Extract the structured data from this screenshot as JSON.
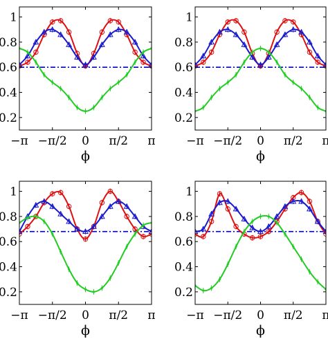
{
  "chart_data": [
    {
      "type": "line",
      "xlabel": "ϕ",
      "ylabel": "",
      "xlim": [
        -3.1416,
        3.1416
      ],
      "ylim": [
        0.1,
        1.08
      ],
      "xticks": [
        -3.1416,
        -1.5708,
        0,
        1.5708,
        3.1416
      ],
      "xtick_labels": [
        "−π",
        "−π/2",
        "0",
        "π/2",
        "π"
      ],
      "yticks": [
        0.2,
        0.4,
        0.6,
        0.8,
        1.0
      ],
      "ytick_labels": [
        "0.2",
        "0.4",
        "0.6",
        "0.8",
        "1"
      ],
      "reference_line": {
        "y": 0.6,
        "style": "dash-dot",
        "color": "#0000cc"
      },
      "series": [
        {
          "color": "#dd1111",
          "marker": "circle",
          "x": [
            -3.1416,
            -2.7489,
            -2.3562,
            -1.9635,
            -1.5708,
            -1.1781,
            -0.7854,
            -0.3927,
            0,
            0.3927,
            0.7854,
            1.1781,
            1.5708,
            1.9635,
            2.3562,
            2.7489,
            3.1416
          ],
          "y": [
            0.61,
            0.64,
            0.72,
            0.86,
            0.96,
            0.97,
            0.88,
            0.71,
            0.61,
            0.71,
            0.88,
            0.97,
            0.96,
            0.86,
            0.72,
            0.64,
            0.61
          ]
        },
        {
          "color": "#1a1acc",
          "marker": "triangle",
          "x": [
            -3.1416,
            -2.7489,
            -2.3562,
            -1.9635,
            -1.5708,
            -1.1781,
            -0.7854,
            -0.3927,
            0,
            0.3927,
            0.7854,
            1.1781,
            1.5708,
            1.9635,
            2.3562,
            2.7489,
            3.1416
          ],
          "y": [
            0.62,
            0.69,
            0.8,
            0.88,
            0.9,
            0.86,
            0.78,
            0.68,
            0.62,
            0.68,
            0.78,
            0.86,
            0.9,
            0.88,
            0.8,
            0.69,
            0.62
          ]
        },
        {
          "color": "#22cc22",
          "marker": "point",
          "x": [
            -3.1416,
            -2.7489,
            -2.3562,
            -1.9635,
            -1.5708,
            -1.1781,
            -0.7854,
            -0.3927,
            0,
            0.3927,
            0.7854,
            1.1781,
            1.5708,
            1.9635,
            2.3562,
            2.7489,
            3.1416
          ],
          "y": [
            0.75,
            0.72,
            0.64,
            0.54,
            0.48,
            0.43,
            0.36,
            0.28,
            0.25,
            0.28,
            0.36,
            0.43,
            0.48,
            0.54,
            0.64,
            0.72,
            0.75
          ]
        }
      ]
    },
    {
      "type": "line",
      "xlabel": "ϕ",
      "ylabel": "",
      "xlim": [
        -3.1416,
        3.1416
      ],
      "ylim": [
        0.1,
        1.08
      ],
      "xticks": [
        -3.1416,
        -1.5708,
        0,
        1.5708,
        3.1416
      ],
      "xtick_labels": [
        "−π",
        "−π/2",
        "0",
        "π/2",
        "π"
      ],
      "yticks": [
        0.2,
        0.4,
        0.6,
        0.8,
        1.0
      ],
      "ytick_labels": [
        "0.2",
        "0.4",
        "0.6",
        "0.8",
        "1"
      ],
      "reference_line": {
        "y": 0.6,
        "style": "dash-dot",
        "color": "#0000cc"
      },
      "series": [
        {
          "color": "#dd1111",
          "marker": "circle",
          "x": [
            -3.1416,
            -2.7489,
            -2.3562,
            -1.9635,
            -1.5708,
            -1.1781,
            -0.7854,
            -0.3927,
            0,
            0.3927,
            0.7854,
            1.1781,
            1.5708,
            1.9635,
            2.3562,
            2.7489,
            3.1416
          ],
          "y": [
            0.61,
            0.64,
            0.72,
            0.86,
            0.96,
            0.97,
            0.88,
            0.71,
            0.61,
            0.71,
            0.88,
            0.97,
            0.96,
            0.86,
            0.72,
            0.64,
            0.61
          ]
        },
        {
          "color": "#1a1acc",
          "marker": "triangle",
          "x": [
            -3.1416,
            -2.7489,
            -2.3562,
            -1.9635,
            -1.5708,
            -1.1781,
            -0.7854,
            -0.3927,
            0,
            0.3927,
            0.7854,
            1.1781,
            1.5708,
            1.9635,
            2.3562,
            2.7489,
            3.1416
          ],
          "y": [
            0.62,
            0.69,
            0.8,
            0.88,
            0.9,
            0.86,
            0.78,
            0.68,
            0.62,
            0.68,
            0.78,
            0.86,
            0.9,
            0.88,
            0.8,
            0.69,
            0.62
          ]
        },
        {
          "color": "#22cc22",
          "marker": "point",
          "x": [
            -3.1416,
            -2.7489,
            -2.3562,
            -1.9635,
            -1.5708,
            -1.1781,
            -0.7854,
            -0.3927,
            0,
            0.3927,
            0.7854,
            1.1781,
            1.5708,
            1.9635,
            2.3562,
            2.7489,
            3.1416
          ],
          "y": [
            0.25,
            0.28,
            0.36,
            0.43,
            0.48,
            0.54,
            0.64,
            0.72,
            0.75,
            0.72,
            0.64,
            0.54,
            0.48,
            0.43,
            0.36,
            0.28,
            0.25
          ]
        }
      ]
    },
    {
      "type": "line",
      "xlabel": "ϕ",
      "ylabel": "",
      "xlim": [
        -3.1416,
        3.1416
      ],
      "ylim": [
        0.1,
        1.08
      ],
      "xticks": [
        -3.1416,
        -1.5708,
        0,
        1.5708,
        3.1416
      ],
      "xtick_labels": [
        "−π",
        "−π/2",
        "0",
        "π/2",
        "π"
      ],
      "yticks": [
        0.2,
        0.4,
        0.6,
        0.8,
        1.0
      ],
      "ytick_labels": [
        "0.2",
        "0.4",
        "0.6",
        "0.8",
        "1"
      ],
      "reference_line": {
        "y": 0.68,
        "style": "dash-dot",
        "color": "#0000cc"
      },
      "series": [
        {
          "color": "#dd1111",
          "marker": "circle",
          "x": [
            -3.1416,
            -2.7489,
            -2.3562,
            -1.9635,
            -1.5708,
            -1.1781,
            -0.7854,
            -0.3927,
            0,
            0.3927,
            0.7854,
            1.1781,
            1.5708,
            1.9635,
            2.3562,
            2.7489,
            3.1416
          ],
          "y": [
            0.66,
            0.72,
            0.8,
            0.91,
            0.98,
            0.99,
            0.88,
            0.7,
            0.62,
            0.72,
            0.91,
            1.0,
            0.92,
            0.8,
            0.7,
            0.64,
            0.66
          ]
        },
        {
          "color": "#1a1acc",
          "marker": "triangle",
          "x": [
            -3.1416,
            -2.7489,
            -2.3562,
            -1.9635,
            -1.5708,
            -1.1781,
            -0.7854,
            -0.3927,
            0,
            0.3927,
            0.7854,
            1.1781,
            1.5708,
            1.9635,
            2.3562,
            2.7489,
            3.1416
          ],
          "y": [
            0.68,
            0.8,
            0.89,
            0.92,
            0.88,
            0.82,
            0.76,
            0.7,
            0.68,
            0.72,
            0.8,
            0.88,
            0.92,
            0.88,
            0.8,
            0.72,
            0.68
          ]
        },
        {
          "color": "#22cc22",
          "marker": "point",
          "x": [
            -3.1416,
            -2.7489,
            -2.3562,
            -1.9635,
            -1.5708,
            -1.1781,
            -0.7854,
            -0.3927,
            0,
            0.3927,
            0.7854,
            1.1781,
            1.5708,
            1.9635,
            2.3562,
            2.7489,
            3.1416
          ],
          "y": [
            0.75,
            0.79,
            0.8,
            0.76,
            0.66,
            0.52,
            0.38,
            0.27,
            0.22,
            0.2,
            0.23,
            0.31,
            0.43,
            0.56,
            0.66,
            0.73,
            0.75
          ]
        }
      ]
    },
    {
      "type": "line",
      "xlabel": "ϕ",
      "ylabel": "",
      "xlim": [
        -3.1416,
        3.1416
      ],
      "ylim": [
        0.1,
        1.08
      ],
      "xticks": [
        -3.1416,
        -1.5708,
        0,
        1.5708,
        3.1416
      ],
      "xtick_labels": [
        "−π",
        "−π/2",
        "0",
        "π/2",
        "π"
      ],
      "yticks": [
        0.2,
        0.4,
        0.6,
        0.8,
        1.0
      ],
      "ytick_labels": [
        "0.2",
        "0.4",
        "0.6",
        "0.8",
        "1"
      ],
      "reference_line": {
        "y": 0.68,
        "style": "dash-dot",
        "color": "#0000cc"
      },
      "series": [
        {
          "color": "#dd1111",
          "marker": "circle",
          "x": [
            -3.1416,
            -2.7489,
            -2.3562,
            -1.9635,
            -1.5708,
            -1.1781,
            -0.7854,
            -0.3927,
            0,
            0.3927,
            0.7854,
            1.1781,
            1.5708,
            1.9635,
            2.3562,
            2.7489,
            3.1416
          ],
          "y": [
            0.66,
            0.64,
            0.76,
            0.98,
            0.86,
            0.72,
            0.66,
            0.63,
            0.64,
            0.68,
            0.76,
            0.86,
            0.95,
            0.99,
            0.92,
            0.76,
            0.66
          ]
        },
        {
          "color": "#1a1acc",
          "marker": "triangle",
          "x": [
            -3.1416,
            -2.7489,
            -2.3562,
            -1.9635,
            -1.5708,
            -1.1781,
            -0.7854,
            -0.3927,
            0,
            0.3927,
            0.7854,
            1.1781,
            1.5708,
            1.9635,
            2.3562,
            2.7489,
            3.1416
          ],
          "y": [
            0.68,
            0.7,
            0.82,
            0.91,
            0.92,
            0.86,
            0.78,
            0.71,
            0.68,
            0.72,
            0.8,
            0.88,
            0.92,
            0.92,
            0.86,
            0.76,
            0.68
          ]
        },
        {
          "color": "#22cc22",
          "marker": "point",
          "x": [
            -3.1416,
            -2.7489,
            -2.3562,
            -1.9635,
            -1.5708,
            -1.1781,
            -0.7854,
            -0.3927,
            0,
            0.3927,
            0.7854,
            1.1781,
            1.5708,
            1.9635,
            2.3562,
            2.7489,
            3.1416
          ],
          "y": [
            0.25,
            0.21,
            0.23,
            0.3,
            0.42,
            0.56,
            0.68,
            0.76,
            0.8,
            0.8,
            0.75,
            0.66,
            0.56,
            0.46,
            0.36,
            0.28,
            0.22
          ]
        }
      ]
    }
  ]
}
